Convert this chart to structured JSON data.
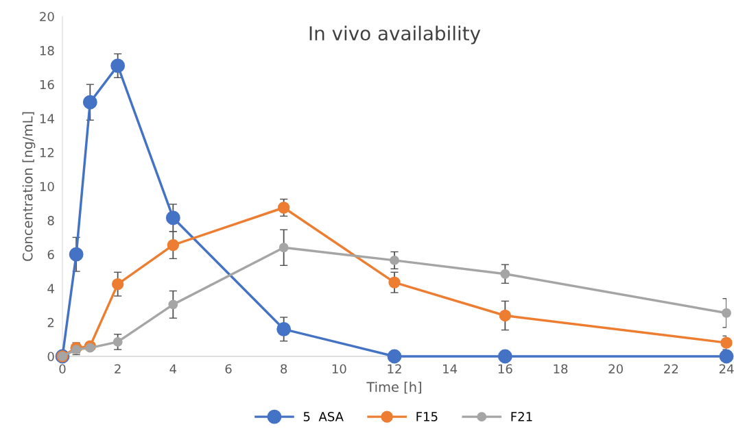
{
  "chart_data": {
    "type": "line",
    "title": "In vivo availability",
    "xlabel": "Time [h]",
    "ylabel": "Concentration [ng/mL]",
    "x": [
      0,
      0.5,
      1,
      2,
      4,
      8,
      12,
      16,
      24
    ],
    "series": [
      {
        "name": "5  ASA",
        "color": "#4472c4",
        "values": [
          0,
          6.0,
          14.95,
          17.1,
          8.15,
          1.6,
          0,
          0,
          0
        ],
        "errors": [
          null,
          1.0,
          1.05,
          0.7,
          0.8,
          0.7,
          null,
          null,
          null
        ]
      },
      {
        "name": "F15",
        "color": "#ed7d31",
        "values": [
          0,
          0.5,
          0.6,
          4.25,
          6.55,
          8.75,
          4.35,
          2.4,
          0.8
        ],
        "errors": [
          null,
          0.3,
          0.2,
          0.7,
          0.8,
          0.5,
          0.6,
          0.85,
          0.4
        ]
      },
      {
        "name": "F21",
        "color": "#a5a5a5",
        "values": [
          0,
          0.4,
          0.5,
          0.85,
          3.05,
          6.4,
          5.65,
          4.85,
          2.55
        ],
        "errors": [
          null,
          0.3,
          0.1,
          0.45,
          0.8,
          1.05,
          0.5,
          0.55,
          0.85
        ]
      }
    ],
    "xlim": [
      0,
      24
    ],
    "xticks": [
      0,
      2,
      4,
      6,
      8,
      10,
      12,
      14,
      16,
      18,
      20,
      22,
      24
    ],
    "ylim": [
      0,
      20
    ],
    "yticks": [
      0,
      2,
      4,
      6,
      8,
      10,
      12,
      14,
      16,
      18,
      20
    ],
    "grid": false,
    "legend": "bottom",
    "marker": "circle",
    "line_style": "solid"
  }
}
